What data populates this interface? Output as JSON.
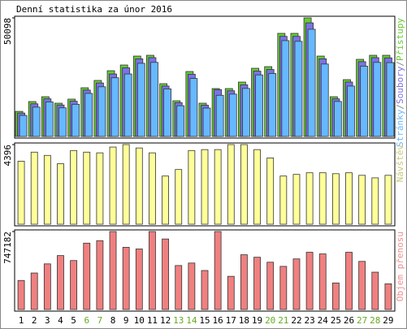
{
  "chart_data": [
    {
      "type": "bar",
      "title": "Denní statistika za únor 2016",
      "ylim": [
        0,
        50098
      ],
      "yticks": [
        50098
      ],
      "legend_separator": "/",
      "series": [
        {
          "name": "Stránky",
          "color": "#66b8ff",
          "values": [
            8900,
            12400,
            14600,
            12100,
            13600,
            18200,
            21000,
            24800,
            26400,
            30900,
            31300,
            20100,
            13000,
            24500,
            12000,
            17400,
            17900,
            20300,
            26000,
            26600,
            40500,
            40200,
            45300,
            30600,
            14800,
            21300,
            29700,
            31300,
            31200
          ]
        },
        {
          "name": "Soubory",
          "color": "#7a73e6",
          "values": [
            9900,
            13800,
            15900,
            13300,
            14900,
            19600,
            22600,
            26400,
            29000,
            32800,
            33300,
            21300,
            14300,
            26300,
            13200,
            19800,
            19300,
            21800,
            27600,
            28300,
            42300,
            42300,
            48000,
            32800,
            15900,
            23000,
            31600,
            33300,
            33200
          ]
        },
        {
          "name": "Přístupy",
          "color": "#66cc33",
          "values": [
            10600,
            14750,
            16800,
            14060,
            15780,
            20580,
            23670,
            27780,
            30190,
            33960,
            34300,
            22300,
            15090,
            27440,
            14060,
            20240,
            20240,
            22980,
            28810,
            29500,
            43560,
            43560,
            50098,
            33960,
            16800,
            24010,
            32590,
            34300,
            34300
          ]
        }
      ]
    },
    {
      "type": "bar",
      "ylim": [
        0,
        4396
      ],
      "yticks": [
        4396
      ],
      "series": [
        {
          "name": "Návštěv",
          "color": "#ffff99",
          "label_color": "#c8c878",
          "values": [
            3480,
            3980,
            3800,
            3340,
            4070,
            3980,
            3940,
            4260,
            4396,
            4210,
            3940,
            2660,
            3020,
            4070,
            4120,
            4120,
            4396,
            4396,
            4120,
            3660,
            2660,
            2750,
            2840,
            2840,
            2790,
            2840,
            2700,
            2560,
            2700
          ]
        }
      ]
    },
    {
      "type": "bar",
      "ylim": [
        0,
        747182
      ],
      "yticks": [
        747182
      ],
      "categories": [
        "1",
        "2",
        "3",
        "4",
        "5",
        "6",
        "7",
        "8",
        "9",
        "10",
        "11",
        "12",
        "13",
        "14",
        "15",
        "16",
        "17",
        "18",
        "19",
        "20",
        "21",
        "22",
        "23",
        "24",
        "25",
        "26",
        "27",
        "28",
        "29"
      ],
      "category_colors": [
        "#000",
        "#000",
        "#000",
        "#000",
        "#000",
        "#66aa22",
        "#66aa22",
        "#000",
        "#000",
        "#000",
        "#000",
        "#000",
        "#66aa22",
        "#66aa22",
        "#000",
        "#000",
        "#000",
        "#000",
        "#000",
        "#66aa22",
        "#66aa22",
        "#000",
        "#000",
        "#000",
        "#000",
        "#000",
        "#66aa22",
        "#66aa22",
        "#000"
      ],
      "series": [
        {
          "name": "Objem přenosu",
          "color": "#f08080",
          "label_color": "#f09090",
          "values": [
            278200,
            349800,
            437200,
            516700,
            469000,
            635900,
            659700,
            747182,
            596000,
            580000,
            747182,
            675700,
            421300,
            445100,
            373600,
            747182,
            318000,
            524600,
            500800,
            453100,
            413300,
            484900,
            548500,
            532600,
            254400,
            548500,
            461000,
            357700,
            246400
          ]
        }
      ]
    }
  ]
}
